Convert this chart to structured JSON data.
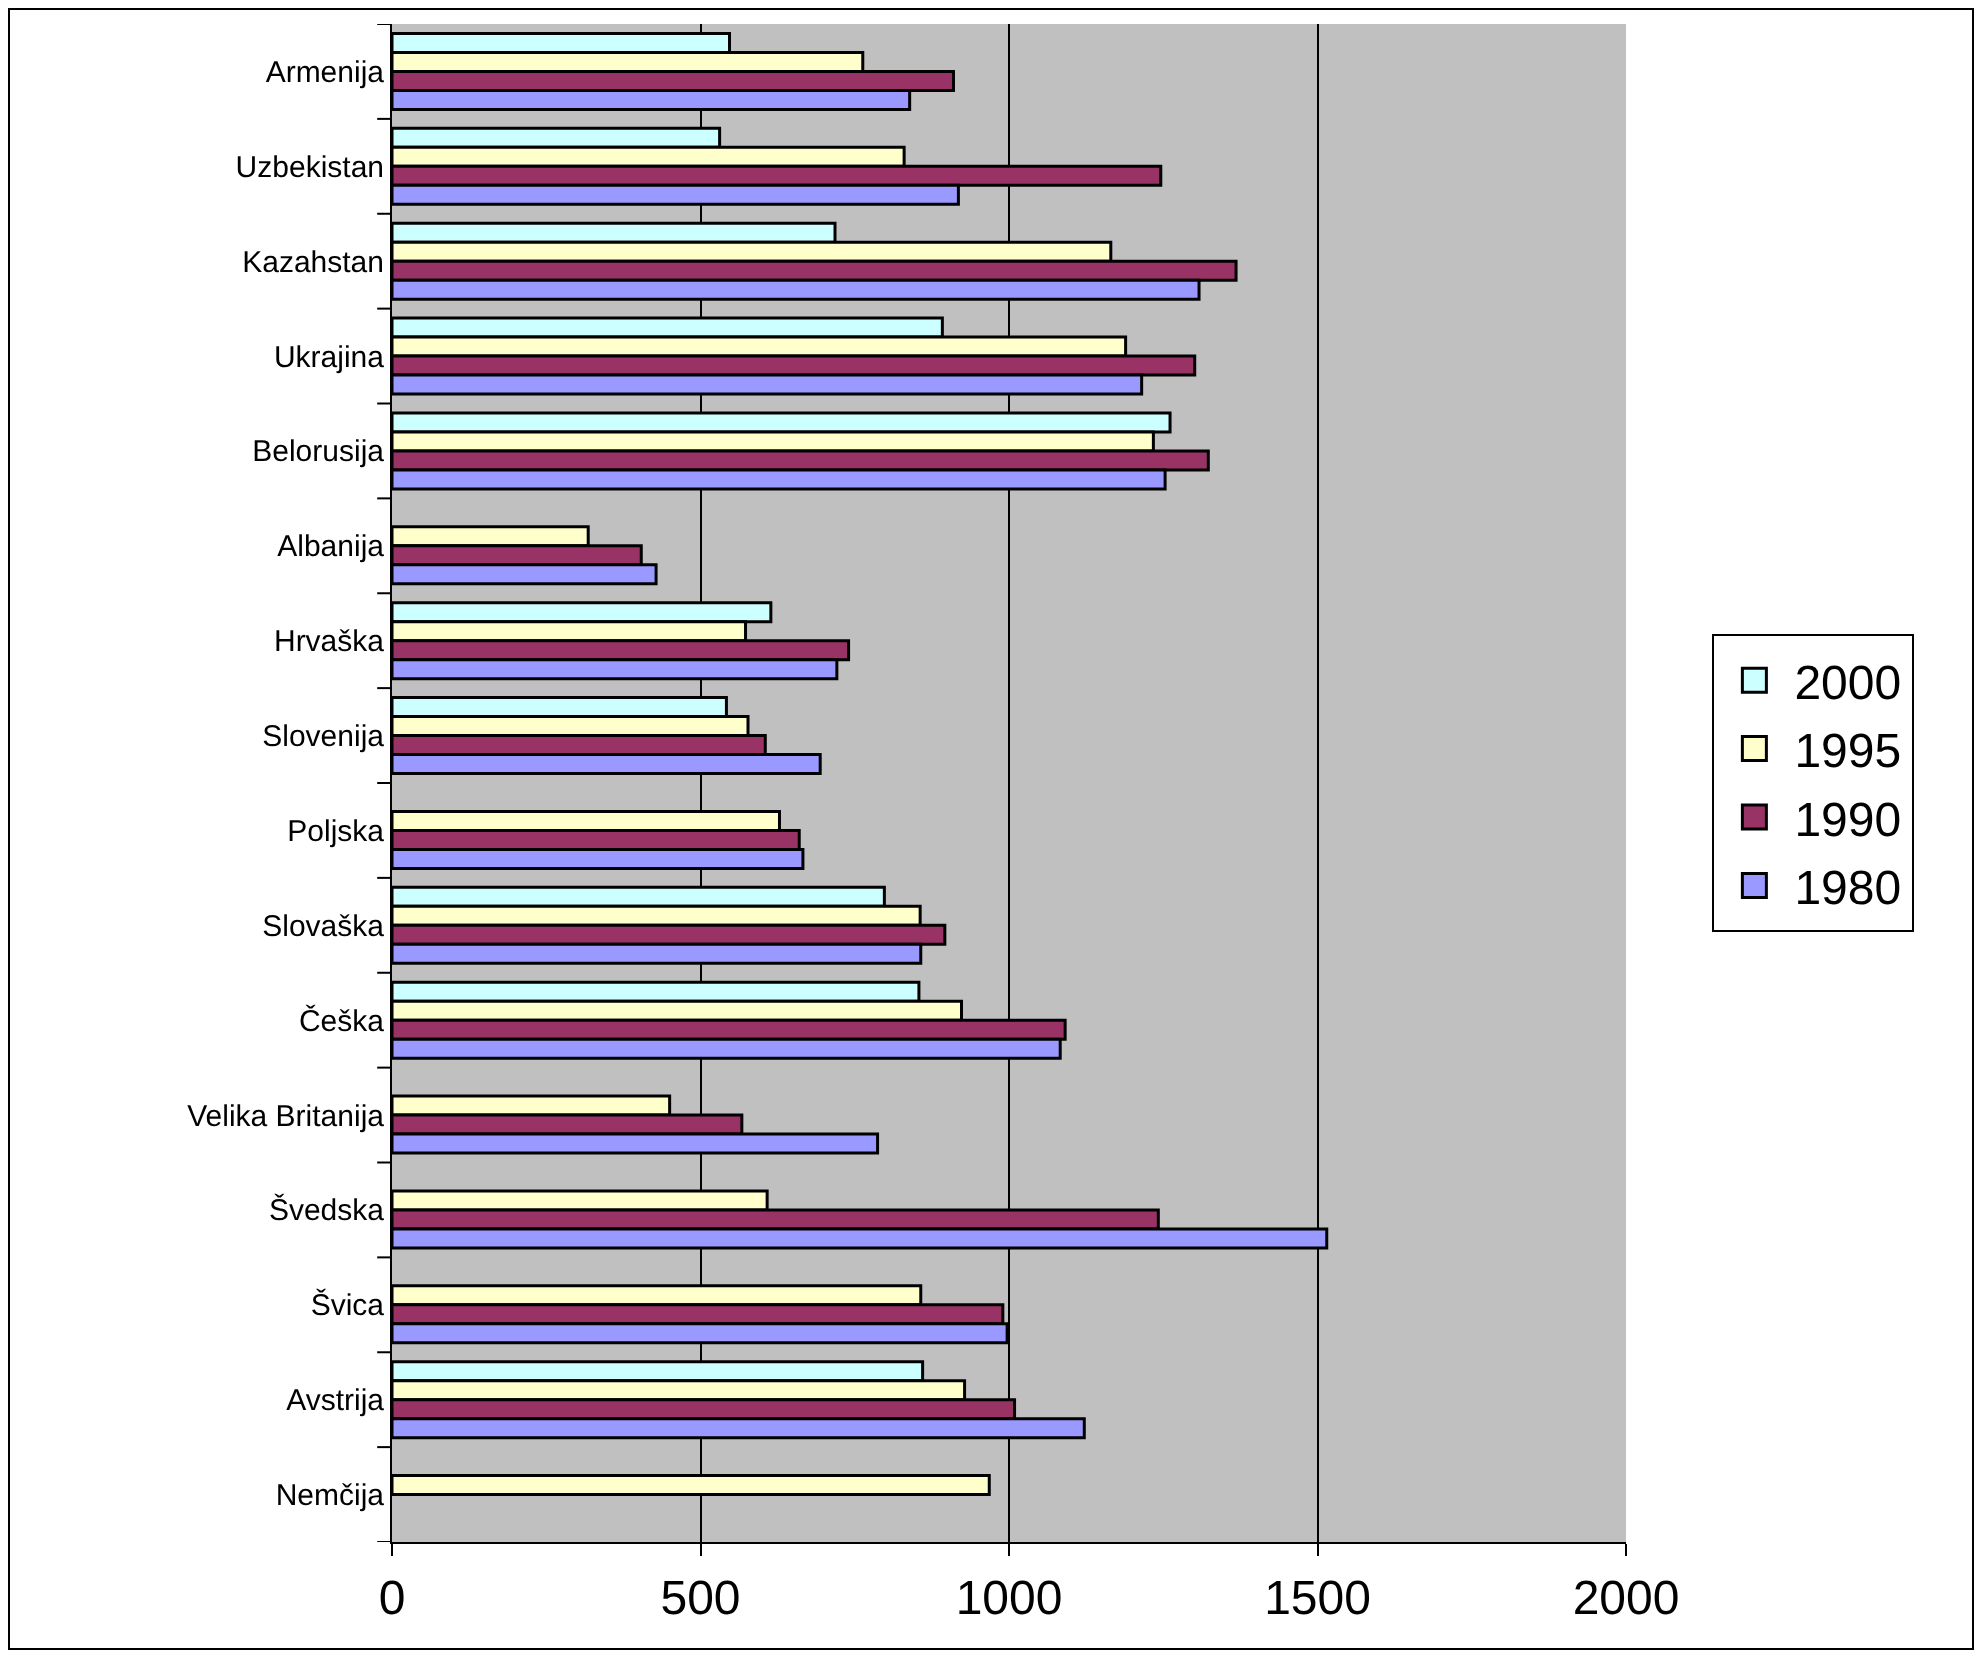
{
  "chart_data": {
    "type": "bar",
    "orientation": "horizontal",
    "categories": [
      "Armenija",
      "Uzbekistan",
      "Kazahstan",
      "Ukrajina",
      "Belorusija",
      "Albanija",
      "Hrvaška",
      "Slovenija",
      "Poljska",
      "Slovaška",
      "Češka",
      "Velika Britanija",
      "Švedska",
      "Švica",
      "Avstrija",
      "Nemčija"
    ],
    "series": [
      {
        "name": "2000",
        "color": "#ccffff",
        "values": [
          547,
          531,
          718,
          892,
          1261,
          null,
          614,
          542,
          null,
          798,
          854,
          null,
          null,
          null,
          860,
          null
        ]
      },
      {
        "name": "1995",
        "color": "#ffffcc",
        "values": [
          763,
          830,
          1165,
          1189,
          1234,
          318,
          573,
          577,
          628,
          856,
          923,
          450,
          608,
          857,
          928,
          968
        ]
      },
      {
        "name": "1990",
        "color": "#993366",
        "values": [
          910,
          1246,
          1368,
          1301,
          1323,
          404,
          740,
          605,
          660,
          896,
          1091,
          567,
          1242,
          990,
          1009,
          null
        ]
      },
      {
        "name": "1980",
        "color": "#9999ff",
        "values": [
          839,
          918,
          1308,
          1215,
          1253,
          428,
          721,
          694,
          666,
          857,
          1083,
          787,
          1515,
          997,
          1122,
          null
        ]
      }
    ],
    "xlim": [
      0,
      2000
    ],
    "xticks": [
      0,
      500,
      1000,
      1500,
      2000
    ],
    "grid": "x",
    "legend": "right"
  }
}
